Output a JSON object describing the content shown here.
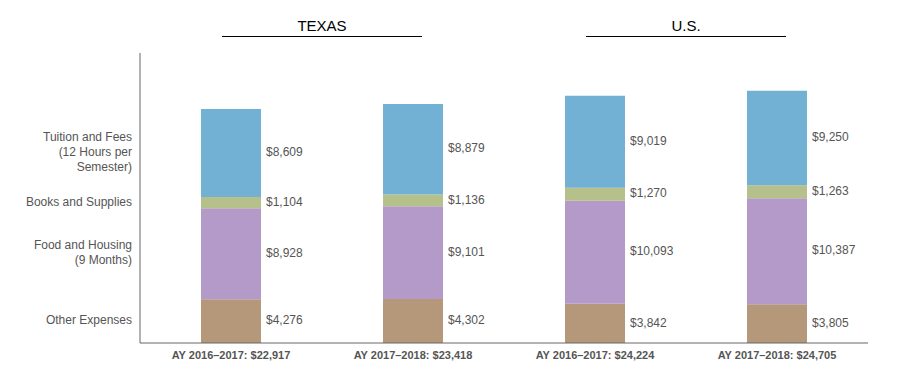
{
  "chart_data": {
    "type": "bar",
    "stacked": true,
    "data_labels": true,
    "tick_labels": "x",
    "grid": false,
    "categories": [
      "AY 2016–2017: $22,917",
      "AY 2017–2018: $23,418",
      "AY 2016–2017: $24,224",
      "AY 2017–2018: $24,705"
    ],
    "series": [
      {
        "name": "Other Expenses",
        "color": "#b5977a",
        "values": [
          4276,
          4302,
          3842,
          3805
        ],
        "value_labels": [
          "$4,276",
          "$4,302",
          "$3,842",
          "$3,805"
        ]
      },
      {
        "name": "Food and Housing\n(9 Months)",
        "color": "#b49ac9",
        "values": [
          8928,
          9101,
          10093,
          10387
        ],
        "value_labels": [
          "$8,928",
          "$9,101",
          "$10,093",
          "$10,387"
        ]
      },
      {
        "name": "Books and Supplies",
        "color": "#b5c08a",
        "values": [
          1104,
          1136,
          1270,
          1263
        ],
        "value_labels": [
          "$1,104",
          "$1,136",
          "$1,270",
          "$1,263"
        ]
      },
      {
        "name": "Tuition and Fees\n(12 Hours per\nSemester)",
        "color": "#72b0d4",
        "values": [
          8609,
          8879,
          9019,
          9250
        ],
        "value_labels": [
          "$8,609",
          "$8,879",
          "$9,019",
          "$9,250"
        ]
      }
    ],
    "ylim": [
      0,
      28410.75
    ],
    "annotations": [
      {
        "text": "TEXAS",
        "categories": [
          "AY 2016–2017: $22,917",
          "AY 2017–2018: $23,418"
        ]
      },
      {
        "text": "U.S.",
        "categories": [
          "AY 2016–2017: $24,224",
          "AY 2017–2018: $24,705"
        ]
      }
    ]
  }
}
